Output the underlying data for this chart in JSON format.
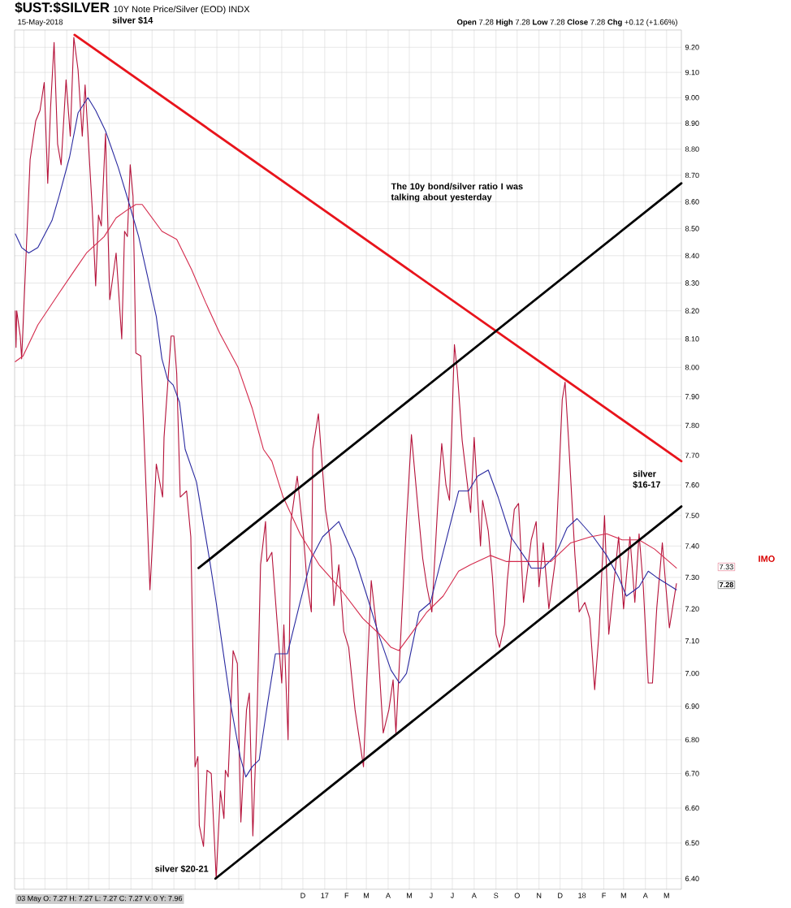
{
  "chart_data": {
    "type": "line",
    "title": "$UST:$SILVER",
    "subtitle": "10Y Note Price/Silver (EOD) INDX",
    "annotations": [
      "15-May-2018",
      "**Open** 7.28 **High** 7.28 **Low** 7.28 **Close** 7.28 **Chg** +0.12 (+1.66%)",
      "03 May O: 7.27 H: 7.27 L: 7.27 C: 7.27 V: 0 Y: 7.96",
      "silver $14",
      "The 10y bond/silver ratio I was talking about yesterday",
      "silver $16-17",
      "IMO",
      {
        "text": "silver $20-21",
        "x": "2016-07-31",
        "y": 6.4
      },
      "7.33",
      "7.28"
    ],
    "log": true,
    "grid": true,
    "xlim": [
      "2015-10-19",
      "2018-05-22"
    ],
    "ylim": [
      6.37,
      9.27
    ],
    "xticks": [
      {
        "value": "2015-11-01",
        "label": null
      },
      {
        "value": "2015-12-01",
        "label": null
      },
      {
        "value": "2016-01-01",
        "label": null
      },
      {
        "value": "2016-02-01",
        "label": null
      },
      {
        "value": "2016-03-01",
        "label": null
      },
      {
        "value": "2016-04-01",
        "label": null
      },
      {
        "value": "2016-05-01",
        "label": null
      },
      {
        "value": "2016-06-01",
        "label": null
      },
      {
        "value": "2016-07-01",
        "label": null
      },
      {
        "value": "2016-08-01",
        "label": null
      },
      {
        "value": "2016-09-01",
        "label": null
      },
      {
        "value": "2016-10-01",
        "label": null
      },
      {
        "value": "2016-11-01",
        "label": null
      },
      {
        "value": "2016-12-01",
        "label": "D"
      },
      {
        "value": "2017-01-01",
        "label": "17"
      },
      {
        "value": "2017-02-01",
        "label": "F"
      },
      {
        "value": "2017-03-01",
        "label": "M"
      },
      {
        "value": "2017-04-01",
        "label": "A"
      },
      {
        "value": "2017-05-01",
        "label": "M"
      },
      {
        "value": "2017-06-01",
        "label": "J"
      },
      {
        "value": "2017-07-01",
        "label": "J"
      },
      {
        "value": "2017-08-01",
        "label": "A"
      },
      {
        "value": "2017-09-01",
        "label": "S"
      },
      {
        "value": "2017-10-01",
        "label": "O"
      },
      {
        "value": "2017-11-01",
        "label": "N"
      },
      {
        "value": "2017-12-01",
        "label": "D"
      },
      {
        "value": "2018-01-01",
        "label": "18"
      },
      {
        "value": "2018-02-01",
        "label": "F"
      },
      {
        "value": "2018-03-01",
        "label": "M"
      },
      {
        "value": "2018-04-01",
        "label": "A"
      },
      {
        "value": "2018-05-01",
        "label": "M"
      }
    ],
    "yticks": [
      {
        "value": 6.4,
        "label": "6.40"
      },
      {
        "value": 6.5,
        "label": "6.50"
      },
      {
        "value": 6.6,
        "label": "6.60"
      },
      {
        "value": 6.7,
        "label": "6.70"
      },
      {
        "value": 6.8,
        "label": "6.80"
      },
      {
        "value": 6.9,
        "label": "6.90"
      },
      {
        "value": 7.0,
        "label": "7.00"
      },
      {
        "value": 7.1,
        "label": "7.10"
      },
      {
        "value": 7.2,
        "label": "7.20"
      },
      {
        "value": 7.3,
        "label": "7.30"
      },
      {
        "value": 7.4,
        "label": "7.40"
      },
      {
        "value": 7.5,
        "label": "7.50"
      },
      {
        "value": 7.6,
        "label": "7.60"
      },
      {
        "value": 7.7,
        "label": "7.70"
      },
      {
        "value": 7.8,
        "label": "7.80"
      },
      {
        "value": 7.9,
        "label": "7.90"
      },
      {
        "value": 8.0,
        "label": "8.00"
      },
      {
        "value": 8.1,
        "label": "8.10"
      },
      {
        "value": 8.2,
        "label": "8.20"
      },
      {
        "value": 8.3,
        "label": "8.30"
      },
      {
        "value": 8.4,
        "label": "8.40"
      },
      {
        "value": 8.5,
        "label": "8.50"
      },
      {
        "value": 8.6,
        "label": "8.60"
      },
      {
        "value": 8.7,
        "label": "8.70"
      },
      {
        "value": 8.8,
        "label": "8.80"
      },
      {
        "value": 8.9,
        "label": "8.90"
      },
      {
        "value": 9.0,
        "label": "9.00"
      },
      {
        "value": 9.1,
        "label": "9.10"
      },
      {
        "value": 9.2,
        "label": "9.20"
      }
    ],
    "series": [
      {
        "color": "#b5123a",
        "x": [
          "2015-10-20",
          "2015-10-21",
          "2015-10-22",
          "2015-10-27",
          "2015-10-29",
          "2015-11-10",
          "2015-11-18",
          "2015-11-24",
          "2015-11-30",
          "2015-12-05",
          "2015-12-09",
          "2015-12-14",
          "2015-12-19",
          "2015-12-24",
          "2015-12-31",
          "2016-01-06",
          "2016-01-11",
          "2016-01-17",
          "2016-01-23",
          "2016-01-27",
          "2016-02-06",
          "2016-02-11",
          "2016-02-15",
          "2016-02-19",
          "2016-02-25",
          "2016-03-02",
          "2016-03-11",
          "2016-03-19",
          "2016-03-23",
          "2016-03-27",
          "2016-03-31",
          "2016-04-04",
          "2016-04-08",
          "2016-04-15",
          "2016-04-24",
          "2016-04-28",
          "2016-05-03",
          "2016-05-07",
          "2016-05-16",
          "2016-05-18",
          "2016-05-28",
          "2016-06-01",
          "2016-06-05",
          "2016-06-10",
          "2016-06-19",
          "2016-06-25",
          "2016-07-01",
          "2016-07-05",
          "2016-07-07",
          "2016-07-13",
          "2016-07-18",
          "2016-07-24",
          "2016-07-31",
          "2016-08-06",
          "2016-08-11",
          "2016-08-13",
          "2016-08-17",
          "2016-08-24",
          "2016-08-30",
          "2016-09-04",
          "2016-09-12",
          "2016-09-16",
          "2016-09-21",
          "2016-09-27",
          "2016-10-02",
          "2016-10-09",
          "2016-10-11",
          "2016-10-18",
          "2016-11-01",
          "2016-11-04",
          "2016-11-10",
          "2016-11-14",
          "2016-11-23",
          "2016-12-02",
          "2016-12-07",
          "2016-12-13",
          "2016-12-15",
          "2016-12-23",
          "2017-01-02",
          "2017-01-10",
          "2017-01-14",
          "2017-01-21",
          "2017-01-28",
          "2017-02-04",
          "2017-02-13",
          "2017-02-25",
          "2017-03-02",
          "2017-03-08",
          "2017-03-16",
          "2017-03-25",
          "2017-04-02",
          "2017-04-08",
          "2017-04-12",
          "2017-04-27",
          "2017-05-04",
          "2017-05-15",
          "2017-05-20",
          "2017-05-26",
          "2017-06-02",
          "2017-06-10",
          "2017-06-16",
          "2017-06-22",
          "2017-06-27",
          "2017-07-04",
          "2017-07-08",
          "2017-07-15",
          "2017-07-22",
          "2017-07-27",
          "2017-08-01",
          "2017-08-10",
          "2017-08-13",
          "2017-08-21",
          "2017-08-27",
          "2017-09-01",
          "2017-09-06",
          "2017-09-13",
          "2017-09-17",
          "2017-09-27",
          "2017-10-03",
          "2017-10-10",
          "2017-10-21",
          "2017-10-28",
          "2017-11-01",
          "2017-11-07",
          "2017-11-15",
          "2017-11-24",
          "2017-11-29",
          "2017-12-04",
          "2017-12-08",
          "2017-12-13",
          "2017-12-22",
          "2017-12-28",
          "2018-01-05",
          "2018-01-12",
          "2018-01-19",
          "2018-01-25",
          "2018-02-02",
          "2018-02-08",
          "2018-02-17",
          "2018-02-22",
          "2018-03-01",
          "2018-03-10",
          "2018-03-17",
          "2018-03-23",
          "2018-03-29",
          "2018-04-05",
          "2018-04-11",
          "2018-04-17",
          "2018-04-25",
          "2018-04-30",
          "2018-05-05",
          "2018-05-15"
        ],
        "values": [
          8.2,
          8.07,
          8.2,
          8.11,
          8.03,
          8.76,
          8.91,
          8.95,
          9.06,
          8.67,
          8.96,
          9.22,
          8.82,
          8.74,
          9.07,
          8.85,
          9.24,
          9.11,
          8.85,
          9.05,
          8.58,
          8.29,
          8.55,
          8.51,
          8.86,
          8.24,
          8.41,
          8.1,
          8.49,
          8.47,
          8.74,
          8.62,
          8.05,
          8.04,
          7.5,
          7.26,
          7.47,
          7.67,
          7.56,
          7.76,
          8.11,
          8.11,
          7.98,
          7.56,
          7.58,
          7.43,
          6.72,
          6.75,
          6.55,
          6.49,
          6.71,
          6.7,
          6.4,
          6.65,
          6.57,
          6.71,
          6.69,
          7.07,
          7.03,
          6.56,
          6.89,
          6.94,
          6.52,
          6.87,
          7.34,
          7.48,
          7.35,
          7.38,
          6.97,
          7.15,
          6.8,
          7.48,
          7.63,
          7.43,
          7.28,
          7.19,
          7.72,
          7.84,
          7.52,
          7.4,
          7.21,
          7.34,
          7.13,
          7.08,
          6.89,
          6.72,
          6.99,
          7.29,
          7.13,
          6.82,
          6.89,
          6.98,
          6.82,
          7.48,
          7.77,
          7.48,
          7.36,
          7.27,
          7.19,
          7.52,
          7.74,
          7.6,
          7.55,
          8.08,
          7.99,
          7.75,
          7.61,
          7.51,
          7.76,
          7.4,
          7.55,
          7.45,
          7.3,
          7.12,
          7.08,
          7.15,
          7.29,
          7.52,
          7.54,
          7.22,
          7.42,
          7.48,
          7.27,
          7.41,
          7.2,
          7.35,
          7.61,
          7.89,
          7.95,
          7.75,
          7.37,
          7.19,
          7.22,
          7.17,
          6.95,
          7.12,
          7.5,
          7.12,
          7.32,
          7.43,
          7.2,
          7.43,
          7.22,
          7.44,
          7.27,
          6.97,
          6.97,
          7.2,
          7.41,
          7.27,
          7.14,
          7.28
        ]
      },
      {
        "color": "#2a2aa0",
        "x": [
          "2015-10-20",
          "2015-10-29",
          "2015-11-08",
          "2015-11-21",
          "2015-12-11",
          "2015-12-21",
          "2016-01-05",
          "2016-01-17",
          "2016-01-31",
          "2016-02-11",
          "2016-02-25",
          "2016-03-14",
          "2016-03-31",
          "2016-04-12",
          "2016-04-25",
          "2016-05-07",
          "2016-05-15",
          "2016-05-23",
          "2016-05-31",
          "2016-06-09",
          "2016-06-17",
          "2016-07-03",
          "2016-07-22",
          "2016-07-31",
          "2016-08-09",
          "2016-08-21",
          "2016-09-03",
          "2016-09-11",
          "2016-09-20",
          "2016-09-30",
          "2016-10-12",
          "2016-10-23",
          "2016-11-09",
          "2016-11-27",
          "2016-12-13",
          "2016-12-29",
          "2017-01-21",
          "2017-02-13",
          "2017-03-02",
          "2017-03-20",
          "2017-04-05",
          "2017-04-17",
          "2017-04-27",
          "2017-05-15",
          "2017-05-31",
          "2017-06-18",
          "2017-07-10",
          "2017-07-24",
          "2017-08-06",
          "2017-08-21",
          "2017-09-04",
          "2017-09-22",
          "2017-10-16",
          "2017-10-21",
          "2017-11-07",
          "2017-11-24",
          "2017-12-11",
          "2017-12-25",
          "2018-01-17",
          "2018-02-05",
          "2018-02-22",
          "2018-03-05",
          "2018-03-23",
          "2018-04-05",
          "2018-04-17",
          "2018-05-15"
        ],
        "values": [
          8.48,
          8.43,
          8.41,
          8.43,
          8.53,
          8.62,
          8.77,
          8.94,
          9.0,
          8.95,
          8.87,
          8.73,
          8.58,
          8.47,
          8.32,
          8.18,
          8.03,
          7.96,
          7.94,
          7.88,
          7.72,
          7.61,
          7.35,
          7.22,
          7.08,
          6.9,
          6.75,
          6.69,
          6.72,
          6.74,
          6.91,
          7.06,
          7.06,
          7.22,
          7.36,
          7.43,
          7.48,
          7.36,
          7.24,
          7.11,
          7.01,
          6.97,
          7.0,
          7.19,
          7.22,
          7.38,
          7.58,
          7.58,
          7.63,
          7.65,
          7.56,
          7.43,
          7.35,
          7.33,
          7.33,
          7.37,
          7.46,
          7.49,
          7.43,
          7.37,
          7.3,
          7.24,
          7.27,
          7.32,
          7.3,
          7.26
        ]
      },
      {
        "color": "#d42a4c",
        "x": [
          "2015-10-20",
          "2015-10-31",
          "2015-11-21",
          "2015-12-20",
          "2016-01-13",
          "2016-01-29",
          "2016-02-23",
          "2016-03-11",
          "2016-03-27",
          "2016-04-08",
          "2016-04-17",
          "2016-05-15",
          "2016-06-05",
          "2016-06-26",
          "2016-07-16",
          "2016-08-05",
          "2016-08-31",
          "2016-09-20",
          "2016-10-06",
          "2016-10-18",
          "2016-11-03",
          "2016-11-27",
          "2016-12-24",
          "2017-01-21",
          "2017-02-24",
          "2017-03-20",
          "2017-04-05",
          "2017-04-16",
          "2017-05-03",
          "2017-05-26",
          "2017-06-18",
          "2017-07-10",
          "2017-07-27",
          "2017-08-24",
          "2017-09-16",
          "2017-10-16",
          "2017-11-18",
          "2017-12-16",
          "2018-01-13",
          "2018-02-05",
          "2018-02-27",
          "2018-03-23",
          "2018-04-14",
          "2018-05-15"
        ],
        "values": [
          8.02,
          8.04,
          8.15,
          8.26,
          8.35,
          8.41,
          8.47,
          8.54,
          8.57,
          8.59,
          8.59,
          8.49,
          8.46,
          8.35,
          8.23,
          8.12,
          8.0,
          7.86,
          7.72,
          7.68,
          7.56,
          7.44,
          7.34,
          7.27,
          7.17,
          7.12,
          7.08,
          7.07,
          7.12,
          7.19,
          7.24,
          7.32,
          7.34,
          7.37,
          7.35,
          7.35,
          7.35,
          7.41,
          7.43,
          7.44,
          7.42,
          7.42,
          7.39,
          7.33
        ]
      },
      {
        "color": "#e8141c",
        "x": [
          "2016-01-12",
          "2018-05-22"
        ],
        "values": [
          9.25,
          7.68
        ]
      },
      {
        "color": "#000000",
        "x": [
          "2016-07-06",
          "2018-05-22"
        ],
        "values": [
          7.33,
          8.67
        ]
      },
      {
        "color": "#000000",
        "x": [
          "2016-07-30",
          "2018-05-22"
        ],
        "values": [
          6.4,
          7.53
        ]
      }
    ]
  }
}
